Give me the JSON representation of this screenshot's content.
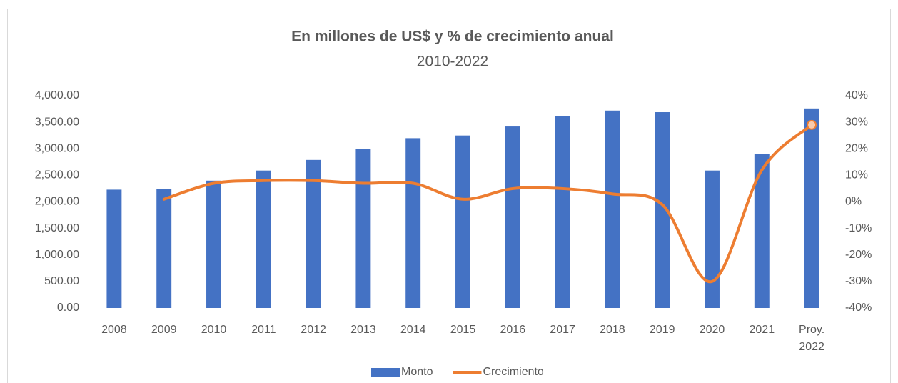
{
  "chart_data": {
    "type": "bar_line",
    "title": "En millones de US$ y % de crecimiento anual",
    "subtitle": "2010-2022",
    "categories": [
      "2008",
      "2009",
      "2010",
      "2011",
      "2012",
      "2013",
      "2014",
      "2015",
      "2016",
      "2017",
      "2018",
      "2019",
      "2020",
      "2021",
      "Proy. 2022"
    ],
    "series": [
      {
        "name": "Monto",
        "type": "bar",
        "color": "#4472c4",
        "values": [
          2230,
          2240,
          2400,
          2590,
          2790,
          3000,
          3200,
          3250,
          3420,
          3610,
          3720,
          3690,
          2590,
          2900,
          3760
        ]
      },
      {
        "name": "Crecimiento",
        "type": "line",
        "axis": "y2",
        "color": "#ed7d31",
        "values": [
          null,
          1,
          7,
          8,
          8,
          7,
          7,
          1,
          5,
          5,
          3,
          -1,
          -30,
          12,
          29
        ]
      }
    ],
    "ylim": [
      0,
      4000
    ],
    "yticks": [
      {
        "value": 0,
        "label": "0.00"
      },
      {
        "value": 500,
        "label": "500.00"
      },
      {
        "value": 1000,
        "label": "1,000.00"
      },
      {
        "value": 1500,
        "label": "1,500.00"
      },
      {
        "value": 2000,
        "label": "2,000.00"
      },
      {
        "value": 2500,
        "label": "2,500.00"
      },
      {
        "value": 3000,
        "label": "3,000.00"
      },
      {
        "value": 3500,
        "label": "3,500.00"
      },
      {
        "value": 4000,
        "label": "4,000.00"
      }
    ],
    "y2lim": [
      -40,
      40
    ],
    "y2ticks": [
      {
        "value": -40,
        "label": "-40%"
      },
      {
        "value": -30,
        "label": "-30%"
      },
      {
        "value": -20,
        "label": "-20%"
      },
      {
        "value": -10,
        "label": "-10%"
      },
      {
        "value": 0,
        "label": "0%"
      },
      {
        "value": 10,
        "label": "10%"
      },
      {
        "value": 20,
        "label": "20%"
      },
      {
        "value": 30,
        "label": "30%"
      },
      {
        "value": 40,
        "label": "40%"
      }
    ],
    "grid": false,
    "legend": "bottom"
  }
}
